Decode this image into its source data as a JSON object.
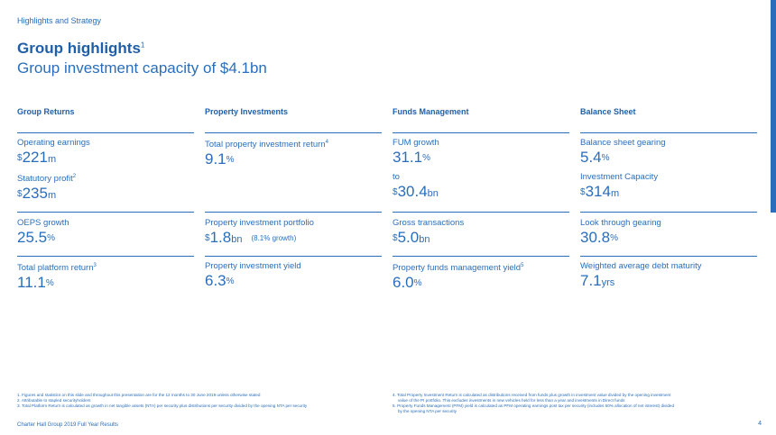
{
  "header": {
    "section": "Highlights and Strategy",
    "title": "Group highlights",
    "title_note": "1",
    "subtitle": "Group investment capacity of $4.1bn"
  },
  "columns": [
    {
      "heading": "Group Returns",
      "metrics": [
        {
          "label": "Operating earnings",
          "note": "",
          "prefix": "$",
          "value": "221",
          "suffix": "m",
          "pct": ""
        },
        {
          "label": "Statutory profit",
          "note": "2",
          "prefix": "$",
          "value": "235",
          "suffix": "m",
          "pct": ""
        },
        {
          "label": "OEPS growth",
          "note": "",
          "prefix": "",
          "value": "25.5",
          "suffix": "",
          "pct": "%"
        },
        {
          "label": "Total platform return",
          "note": "3",
          "prefix": "",
          "value": "11.1",
          "suffix": "",
          "pct": "%"
        }
      ]
    },
    {
      "heading": "Property Investments",
      "metrics": [
        {
          "label": "Total property investment return",
          "note": "4",
          "prefix": "",
          "value": "9.1",
          "suffix": "",
          "pct": "%"
        },
        {
          "label": "Property investment portfolio",
          "note": "",
          "prefix": "$",
          "value": "1.8",
          "suffix": "bn",
          "pct": "",
          "extra": "(8.1% growth)"
        },
        {
          "label": "Property investment yield",
          "note": "",
          "prefix": "",
          "value": "6.3",
          "suffix": "",
          "pct": "%"
        }
      ]
    },
    {
      "heading": "Funds Management",
      "metrics": [
        {
          "label": "FUM growth",
          "note": "",
          "prefix": "",
          "value": "31.1",
          "suffix": "",
          "pct": "%"
        },
        {
          "label": "to",
          "note": "",
          "prefix": "$",
          "value": "30.4",
          "suffix": "bn",
          "pct": ""
        },
        {
          "label": "Gross transactions",
          "note": "",
          "prefix": "$",
          "value": "5.0",
          "suffix": "bn",
          "pct": ""
        },
        {
          "label": "Property funds management yield",
          "note": "5",
          "prefix": "",
          "value": "6.0",
          "suffix": "",
          "pct": "%"
        }
      ]
    },
    {
      "heading": "Balance Sheet",
      "metrics": [
        {
          "label": "Balance sheet gearing",
          "note": "",
          "prefix": "",
          "value": "5.4",
          "suffix": "",
          "pct": "%"
        },
        {
          "label": "Investment Capacity",
          "note": "",
          "prefix": "$",
          "value": "314",
          "suffix": "m",
          "pct": ""
        },
        {
          "label": "Look through gearing",
          "note": "",
          "prefix": "",
          "value": "30.8",
          "suffix": "",
          "pct": "%"
        },
        {
          "label": "Weighted average debt maturity",
          "note": "",
          "prefix": "",
          "value": "7.1",
          "suffix": "yrs",
          "pct": ""
        }
      ]
    }
  ],
  "footnotes_left": [
    "1. Figures and statistics on this slide and throughout this presentation are for the 12 months to 30 June 2019 unless otherwise stated",
    "2. Attributable to stapled securityholders",
    "3. Total Platform Return is calculated as growth in net tangible assets (NTA) per security plus distributions per security divided by the opening NTA per security"
  ],
  "footnotes_right": [
    "4. Total Property Investment Return is calculated as distributions received from funds plus growth in investment value divided by the opening investment",
    "value of the PI portfolio. This excludes investments in new vehicles held for less than a year and investments in Direct funds",
    "5. Property Funds Management (PFM) yield is calculated as PFM operating earnings post tax per security (includes 50% allocation of net interest) divided",
    "by the opening NTA per security"
  ],
  "footer": {
    "left": "Charter Hall Group 2019 Full Year Results",
    "page": "4"
  },
  "colors": {
    "accent": "#2a6ebb",
    "title": "#1f5fa8"
  }
}
